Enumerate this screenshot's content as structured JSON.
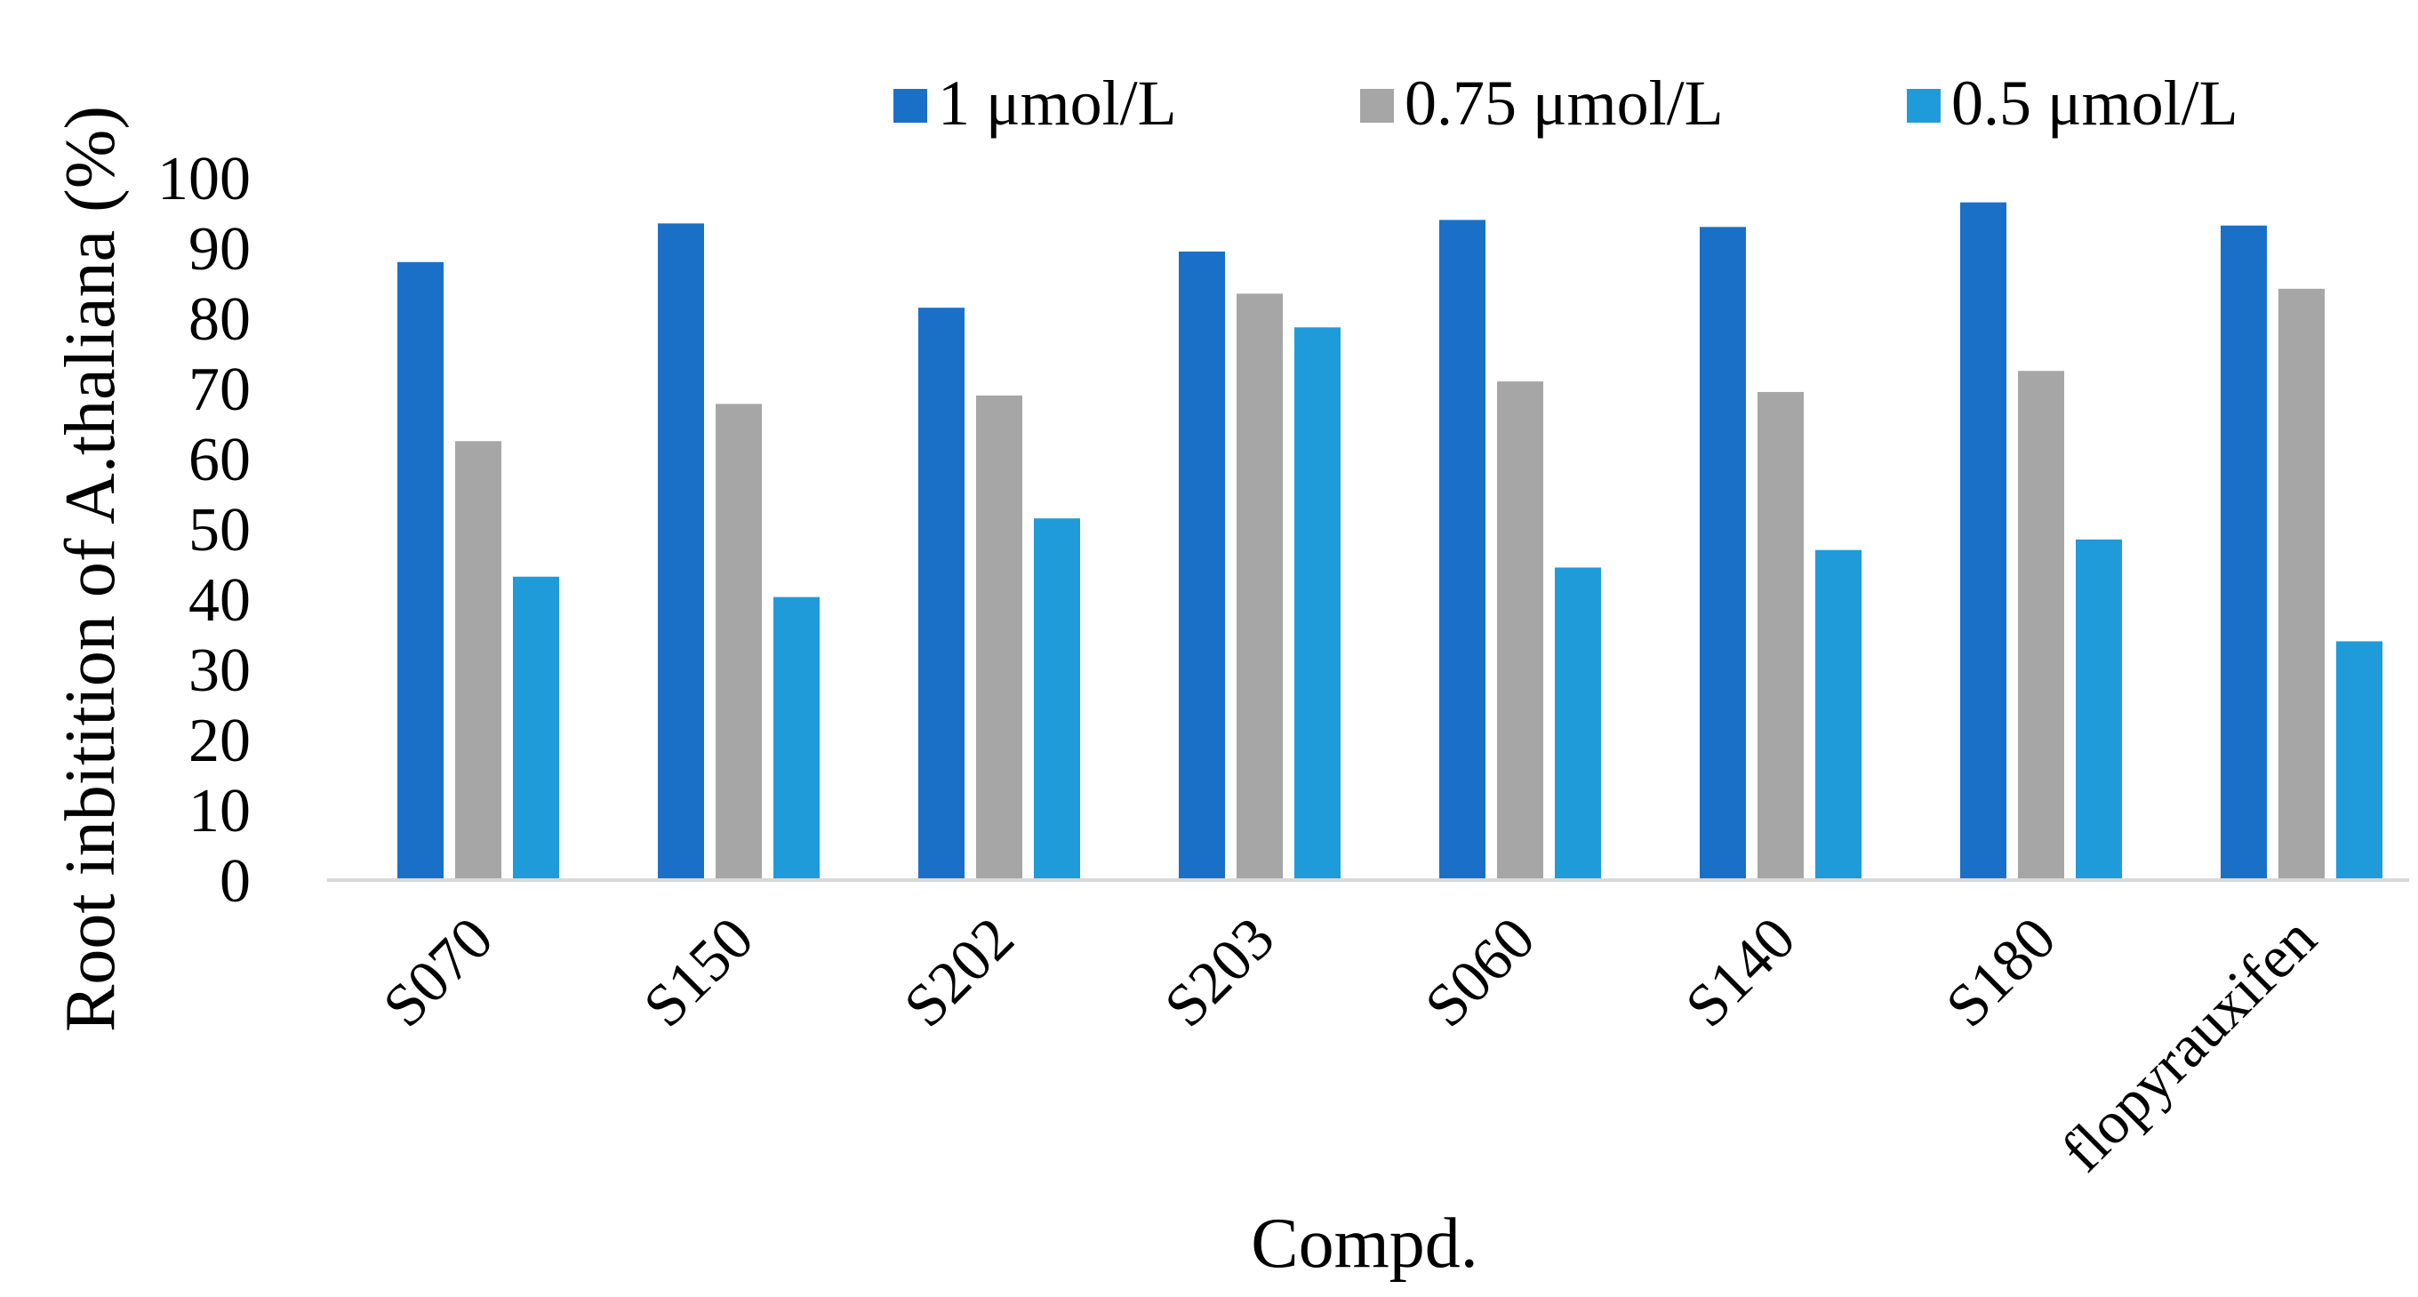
{
  "chart_data": {
    "type": "bar",
    "title": "",
    "xlabel": "Compd.",
    "ylabel": "Root inbitition of A.thaliana (%)",
    "ylim": [
      0,
      100
    ],
    "yticks": [
      "0",
      "10",
      "20",
      "30",
      "40",
      "50",
      "60",
      "70",
      "80",
      "90",
      "100"
    ],
    "grid": false,
    "legend_position": "top",
    "categories": [
      "S070",
      "S150",
      "S202",
      "S203",
      "S060",
      "S140",
      "S180",
      "flopyrauxifen"
    ],
    "series": [
      {
        "name": "1 μmol/L",
        "color": "#1a70c7",
        "values": [
          88,
          93.5,
          81.5,
          89.5,
          94,
          93,
          96.5,
          93.2
        ]
      },
      {
        "name": "0.75 μmol/L",
        "color": "#a6a6a6",
        "values": [
          62.5,
          67.8,
          69,
          83.5,
          71,
          69.5,
          72.5,
          84.2
        ]
      },
      {
        "name": "0.5 μmol/L",
        "color": "#1f9bd9",
        "values": [
          43.2,
          40.3,
          51.5,
          78.7,
          44.5,
          47,
          48.5,
          34
        ]
      }
    ],
    "axis_color": "#d9d9d9"
  }
}
